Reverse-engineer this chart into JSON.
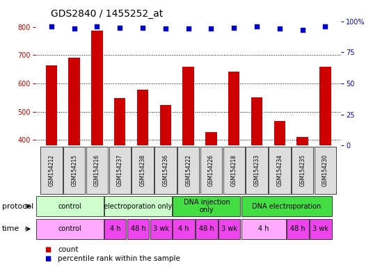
{
  "title": "GDS2840 / 1455252_at",
  "samples": [
    "GSM154212",
    "GSM154215",
    "GSM154216",
    "GSM154237",
    "GSM154238",
    "GSM154236",
    "GSM154222",
    "GSM154226",
    "GSM154218",
    "GSM154233",
    "GSM154234",
    "GSM154235",
    "GSM154230"
  ],
  "counts": [
    665,
    692,
    787,
    549,
    578,
    523,
    660,
    427,
    643,
    551,
    468,
    410,
    658
  ],
  "percentile_ranks": [
    96,
    94,
    96,
    95,
    95,
    94,
    94,
    94,
    95,
    96,
    94,
    93,
    96
  ],
  "ylim_left": [
    380,
    820
  ],
  "bar_bottom": 380,
  "ylim_right": [
    0,
    100
  ],
  "yticks_left": [
    400,
    500,
    600,
    700,
    800
  ],
  "yticks_right": [
    0,
    25,
    50,
    75,
    100
  ],
  "ytick_right_labels": [
    "0",
    "25",
    "50",
    "75",
    "100%"
  ],
  "bar_color": "#cc0000",
  "scatter_color": "#0000cc",
  "protocol_row": [
    {
      "label": "control",
      "span": [
        0,
        3
      ],
      "color": "#ccffcc"
    },
    {
      "label": "electroporation only",
      "span": [
        3,
        6
      ],
      "color": "#ccffcc"
    },
    {
      "label": "DNA injection\nonly",
      "span": [
        6,
        9
      ],
      "color": "#44dd44"
    },
    {
      "label": "DNA electroporation",
      "span": [
        9,
        13
      ],
      "color": "#44dd44"
    }
  ],
  "time_row": [
    {
      "label": "control",
      "span": [
        0,
        3
      ],
      "color": "#ffaaff"
    },
    {
      "label": "4 h",
      "span": [
        3,
        4
      ],
      "color": "#ee44ee"
    },
    {
      "label": "48 h",
      "span": [
        4,
        5
      ],
      "color": "#ee44ee"
    },
    {
      "label": "3 wk",
      "span": [
        5,
        6
      ],
      "color": "#ee44ee"
    },
    {
      "label": "4 h",
      "span": [
        6,
        7
      ],
      "color": "#ee44ee"
    },
    {
      "label": "48 h",
      "span": [
        7,
        8
      ],
      "color": "#ee44ee"
    },
    {
      "label": "3 wk",
      "span": [
        8,
        9
      ],
      "color": "#ee44ee"
    },
    {
      "label": "4 h",
      "span": [
        9,
        11
      ],
      "color": "#ffaaff"
    },
    {
      "label": "48 h",
      "span": [
        11,
        12
      ],
      "color": "#ee44ee"
    },
    {
      "label": "3 wk",
      "span": [
        12,
        13
      ],
      "color": "#ee44ee"
    }
  ],
  "legend_items": [
    {
      "color": "#cc0000",
      "label": "count"
    },
    {
      "color": "#0000cc",
      "label": "percentile rank within the sample"
    }
  ],
  "background_color": "#ffffff",
  "title_fontsize": 10,
  "tick_fontsize": 7,
  "label_fontsize": 8,
  "row_fontsize": 7,
  "bar_width": 0.5
}
